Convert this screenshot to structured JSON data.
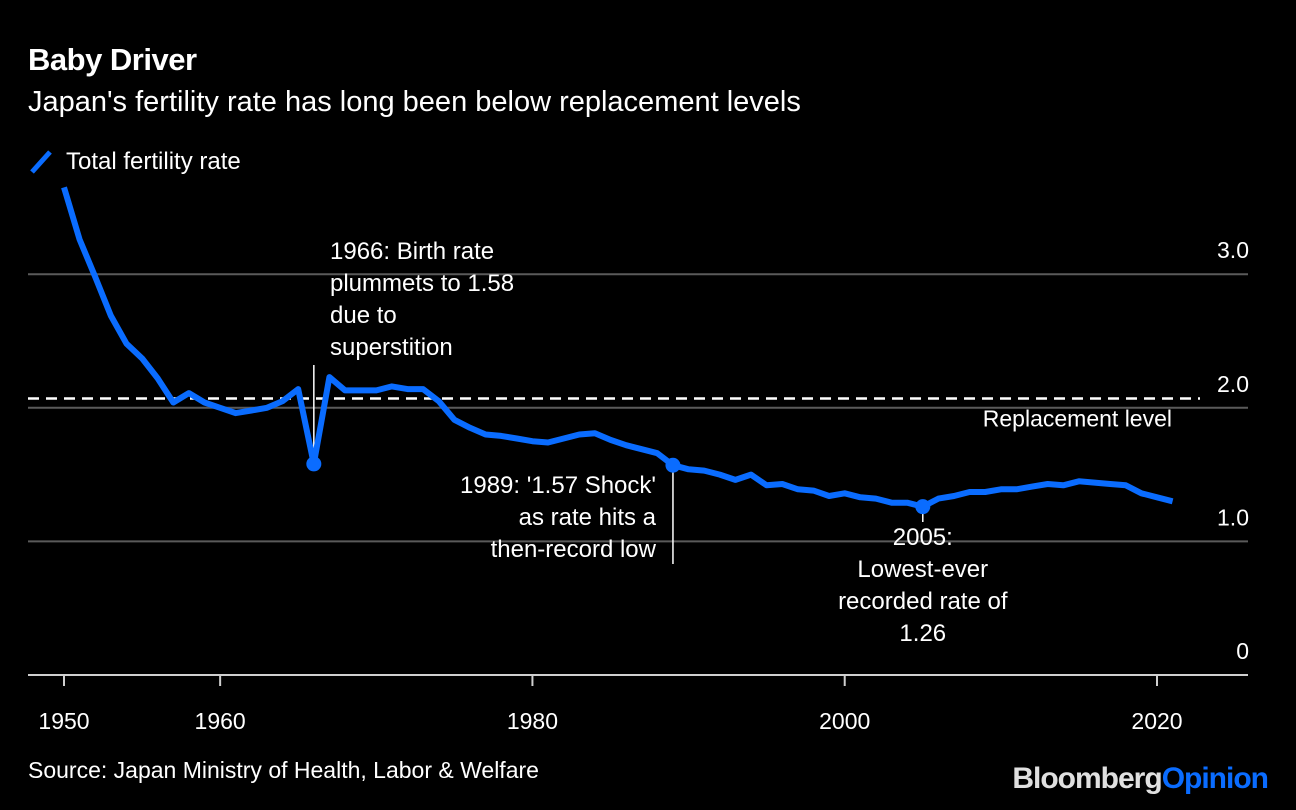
{
  "header": {
    "title": "Baby Driver",
    "subtitle": "Japan's fertility rate has long been below replacement levels"
  },
  "footer": {
    "source": "Source: Japan Ministry of Health, Labor & Welfare",
    "brand_part1": "Bloomberg",
    "brand_part2": "Opinion"
  },
  "colors": {
    "line": "#0a6cff",
    "background": "#000000",
    "grid": "#555555",
    "text": "#ffffff"
  },
  "chart_data": {
    "type": "line",
    "title": "Baby Driver",
    "subtitle": "Japan's fertility rate has long been below replacement levels",
    "xlabel": "",
    "ylabel": "",
    "xlim": [
      1948,
      2026
    ],
    "ylim": [
      0,
      3.0
    ],
    "grid": true,
    "y_axis_side": "right",
    "legend_position": "top-left",
    "x_ticks": [
      1950,
      1960,
      1980,
      2000,
      2020
    ],
    "x_tick_labels": [
      "1950",
      "1960",
      "1980",
      "2000",
      "2020"
    ],
    "y_ticks": [
      0,
      1.0,
      2.0,
      3.0
    ],
    "y_tick_labels": [
      "0",
      "1.0",
      "2.0",
      "3.0"
    ],
    "series": [
      {
        "name": "Total fertility rate",
        "x": [
          1950,
          1951,
          1952,
          1953,
          1954,
          1955,
          1956,
          1957,
          1958,
          1959,
          1960,
          1961,
          1962,
          1963,
          1964,
          1965,
          1966,
          1967,
          1968,
          1969,
          1970,
          1971,
          1972,
          1973,
          1974,
          1975,
          1976,
          1977,
          1978,
          1979,
          1980,
          1981,
          1982,
          1983,
          1984,
          1985,
          1986,
          1987,
          1988,
          1989,
          1990,
          1991,
          1992,
          1993,
          1994,
          1995,
          1996,
          1997,
          1998,
          1999,
          2000,
          2001,
          2002,
          2003,
          2004,
          2005,
          2006,
          2007,
          2008,
          2009,
          2010,
          2011,
          2012,
          2013,
          2014,
          2015,
          2016,
          2017,
          2018,
          2019,
          2020,
          2021
        ],
        "values": [
          3.65,
          3.26,
          2.98,
          2.69,
          2.48,
          2.37,
          2.22,
          2.04,
          2.11,
          2.04,
          2.0,
          1.96,
          1.98,
          2.0,
          2.05,
          2.14,
          1.58,
          2.23,
          2.13,
          2.13,
          2.13,
          2.16,
          2.14,
          2.14,
          2.05,
          1.91,
          1.85,
          1.8,
          1.79,
          1.77,
          1.75,
          1.74,
          1.77,
          1.8,
          1.81,
          1.76,
          1.72,
          1.69,
          1.66,
          1.57,
          1.54,
          1.53,
          1.5,
          1.46,
          1.5,
          1.42,
          1.43,
          1.39,
          1.38,
          1.34,
          1.36,
          1.33,
          1.32,
          1.29,
          1.29,
          1.26,
          1.32,
          1.34,
          1.37,
          1.37,
          1.39,
          1.39,
          1.41,
          1.43,
          1.42,
          1.45,
          1.44,
          1.43,
          1.42,
          1.36,
          1.33,
          1.3
        ]
      }
    ],
    "reference_line": {
      "value": 2.07,
      "label": "Replacement level",
      "style": "dashed"
    },
    "annotations": [
      {
        "year": 1966,
        "value": 1.58,
        "lines": [
          "1966: Birth rate",
          "plummets to 1.58",
          "due to",
          "superstition"
        ]
      },
      {
        "year": 1989,
        "value": 1.57,
        "lines": [
          "1989: '1.57 Shock'",
          "as rate hits a",
          "then-record low"
        ]
      },
      {
        "year": 2005,
        "value": 1.26,
        "lines": [
          "2005:",
          "Lowest-ever",
          "recorded rate of",
          "1.26"
        ]
      }
    ]
  }
}
